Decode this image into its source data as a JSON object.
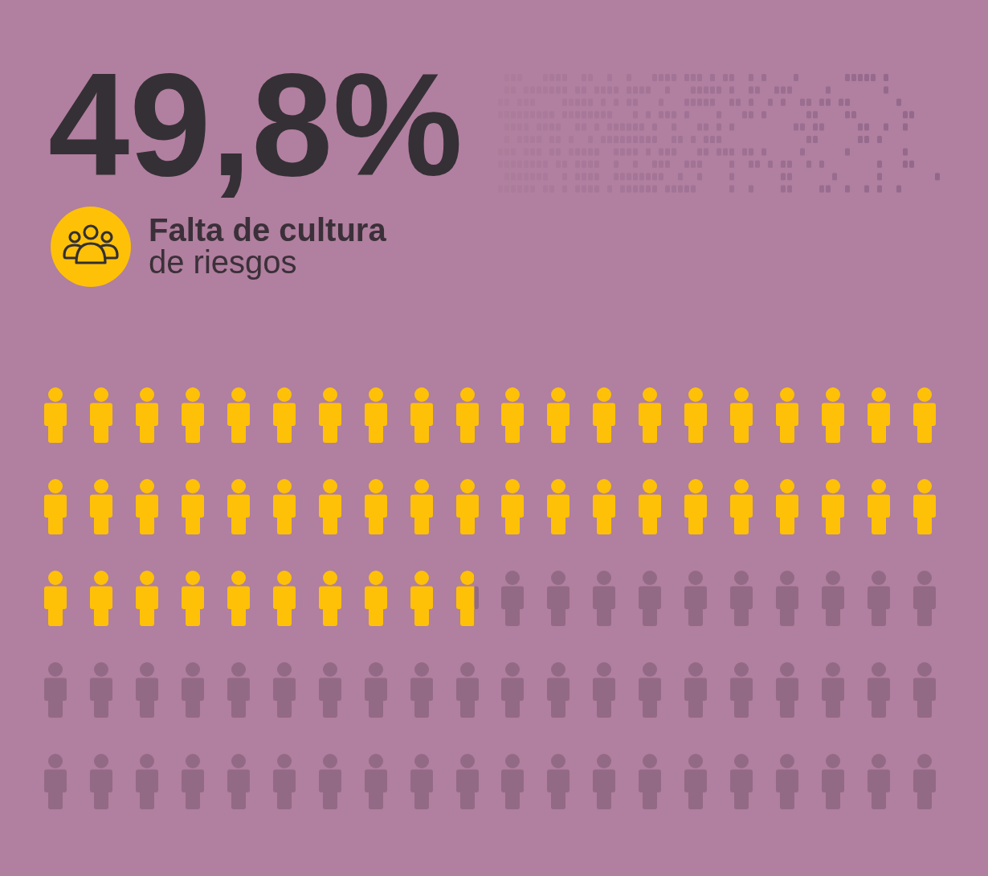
{
  "chart_data": {
    "type": "other",
    "categories": [
      "Falta de cultura de riesgos"
    ],
    "values": [
      49.8
    ],
    "value_labels": [
      "49,8%"
    ],
    "color": "#ffc107"
  }
}
